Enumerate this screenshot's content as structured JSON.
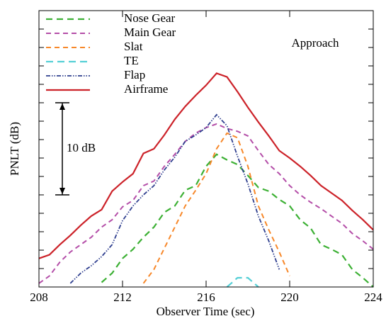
{
  "chart_data": {
    "type": "line",
    "xlabel": "Observer Time (sec)",
    "ylabel": "PNLT (dB)",
    "annotations": [
      {
        "text": "Approach"
      },
      {
        "text": "10 dB",
        "from": 10,
        "to": 20
      }
    ],
    "x": [
      208,
      208.5,
      209,
      209.5,
      210,
      210.5,
      211,
      211.5,
      212,
      212.5,
      213,
      213.5,
      214,
      214.5,
      215,
      215.5,
      216,
      216.5,
      217,
      217.5,
      218,
      218.5,
      219,
      219.5,
      220,
      220.5,
      221,
      221.5,
      222,
      222.5,
      223,
      223.5,
      224
    ],
    "xlim": [
      208,
      224
    ],
    "xticks": [
      208,
      212,
      216,
      220,
      224
    ],
    "ylim": [
      0,
      30
    ],
    "yticks": [
      0,
      2,
      4,
      6,
      8,
      10,
      12,
      14,
      16,
      18,
      20,
      22,
      24,
      26,
      28,
      30
    ],
    "legend": "upper left",
    "series": [
      {
        "name": "Nose Gear",
        "color": "#3cb034",
        "values": [
          null,
          null,
          null,
          null,
          null,
          null,
          0.5,
          1.5,
          3.1,
          4.1,
          5.4,
          6.5,
          8.1,
          8.8,
          10.5,
          11.0,
          13.1,
          14.4,
          13.8,
          13.3,
          12.1,
          10.8,
          10.4,
          9.5,
          8.8,
          7.3,
          6.4,
          4.6,
          4.1,
          3.5,
          1.9,
          1.0,
          0.0
        ]
      },
      {
        "name": "Main Gear",
        "color": "#b44ea8",
        "values": [
          0.4,
          1.2,
          2.7,
          3.8,
          4.6,
          5.4,
          6.5,
          7.3,
          8.7,
          9.4,
          11.0,
          11.5,
          13.1,
          14.4,
          15.8,
          16.7,
          17.3,
          17.7,
          17.2,
          16.9,
          16.4,
          14.8,
          13.3,
          12.3,
          11.0,
          10.0,
          9.2,
          8.5,
          7.7,
          6.9,
          5.8,
          5.0,
          4.1
        ]
      },
      {
        "name": "Slat",
        "color": "#f7882a",
        "values": [
          null,
          null,
          null,
          null,
          null,
          null,
          null,
          null,
          null,
          null,
          0.4,
          1.9,
          4.2,
          6.5,
          8.8,
          10.5,
          12.3,
          15.0,
          16.7,
          16.2,
          13.1,
          8.8,
          6.2,
          3.8,
          1.2,
          null,
          null,
          null,
          null,
          null,
          null,
          null,
          null
        ]
      },
      {
        "name": "TE",
        "color": "#55cfd6",
        "values": [
          null,
          null,
          null,
          null,
          null,
          null,
          null,
          null,
          null,
          null,
          null,
          null,
          null,
          null,
          null,
          null,
          null,
          null,
          0.0,
          1.0,
          1.0,
          0.0,
          null,
          null,
          null,
          null,
          null,
          null,
          null,
          null,
          null,
          null,
          null
        ]
      },
      {
        "name": "Flap",
        "color": "#2f3f8f",
        "values": [
          null,
          null,
          null,
          0.4,
          1.5,
          2.3,
          3.3,
          4.6,
          7.2,
          8.8,
          10.0,
          11.0,
          12.7,
          14.1,
          15.8,
          16.5,
          17.3,
          18.7,
          17.5,
          14.2,
          11.2,
          7.7,
          5.0,
          1.9,
          null,
          null,
          null,
          null,
          null,
          null,
          null,
          null,
          null
        ]
      },
      {
        "name": "Airframe",
        "color": "#cc2229",
        "values": [
          3.1,
          3.5,
          4.6,
          5.6,
          6.7,
          7.7,
          8.4,
          10.4,
          11.4,
          12.3,
          14.5,
          15.0,
          16.5,
          18.2,
          19.6,
          20.8,
          21.9,
          23.2,
          22.8,
          21.2,
          19.5,
          17.9,
          16.4,
          14.8,
          14.0,
          13.1,
          12.1,
          11.0,
          10.2,
          9.4,
          8.3,
          7.3,
          6.2
        ]
      }
    ]
  }
}
